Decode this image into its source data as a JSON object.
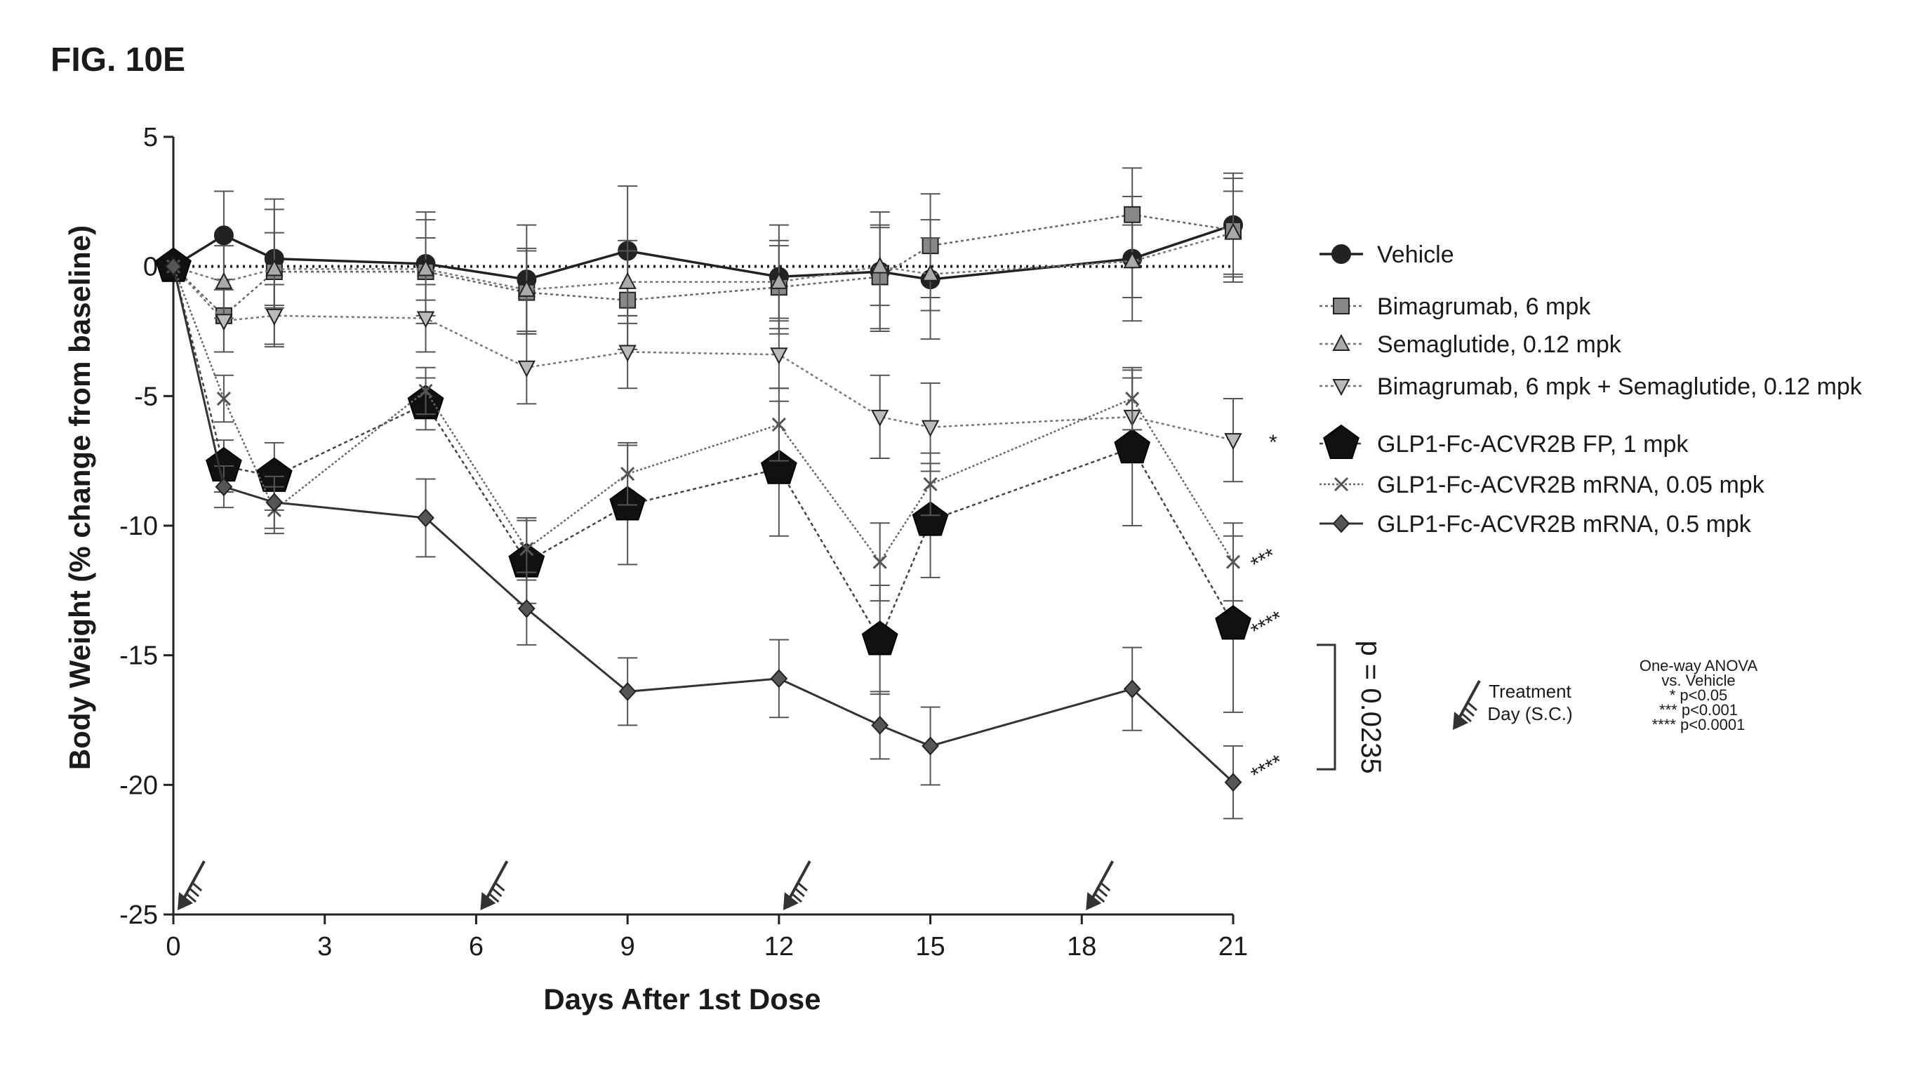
{
  "figure_label": "FIG. 10E",
  "chart_data": {
    "type": "line",
    "title": "",
    "xlabel": "Days After 1st Dose",
    "ylabel": "Body Weight (% change from baseline)",
    "xlim": [
      0,
      21
    ],
    "ylim": [
      -25,
      5
    ],
    "xticks": [
      0,
      3,
      6,
      9,
      12,
      15,
      18,
      21
    ],
    "yticks": [
      5,
      0,
      -5,
      -10,
      -15,
      -20,
      -25
    ],
    "reference_line": 0,
    "grid": false,
    "legend_position": "right",
    "series": [
      {
        "name": "Vehicle",
        "marker": "circle",
        "x": [
          0,
          1,
          2,
          5,
          7,
          9,
          12,
          14,
          15,
          19,
          21
        ],
        "y": [
          0,
          1.2,
          0.3,
          0.1,
          -0.5,
          0.6,
          -0.4,
          -0.2,
          -0.5,
          0.3,
          1.6
        ],
        "err": [
          0,
          1.7,
          1.9,
          2.0,
          2.1,
          2.5,
          2.0,
          2.3,
          2.3,
          2.4,
          2.0
        ]
      },
      {
        "name": "Bimagrumab, 6 mpk",
        "marker": "square",
        "x": [
          0,
          1,
          2,
          5,
          7,
          9,
          12,
          14,
          15,
          19,
          21
        ],
        "y": [
          0,
          -1.9,
          -0.2,
          -0.2,
          -1.0,
          -1.3,
          -0.8,
          -0.4,
          0.8,
          2.0,
          1.4
        ],
        "err": [
          0,
          1.4,
          2.8,
          2.0,
          1.6,
          1.9,
          1.8,
          2.0,
          2.0,
          1.8,
          2.0
        ]
      },
      {
        "name": "Semaglutide, 0.12 mpk",
        "marker": "triangle-up",
        "x": [
          0,
          1,
          2,
          5,
          7,
          9,
          12,
          14,
          15,
          19,
          21
        ],
        "y": [
          0,
          -0.6,
          -0.1,
          -0.1,
          -0.9,
          -0.6,
          -0.6,
          0.0,
          -0.3,
          0.2,
          1.3
        ],
        "err": [
          0,
          1.4,
          1.4,
          1.2,
          1.6,
          1.6,
          1.4,
          1.5,
          1.4,
          1.4,
          1.6
        ]
      },
      {
        "name": "Bimagrumab, 6 mpk + Semaglutide, 0.12 mpk",
        "marker": "triangle-down",
        "x": [
          0,
          1,
          2,
          5,
          7,
          9,
          12,
          14,
          15,
          19,
          21
        ],
        "y": [
          0,
          -2.1,
          -1.9,
          -2.0,
          -3.9,
          -3.3,
          -3.4,
          -5.8,
          -6.2,
          -5.8,
          -6.7
        ],
        "err": [
          0,
          1.2,
          1.2,
          1.3,
          1.4,
          1.4,
          1.3,
          1.6,
          1.7,
          1.5,
          1.6
        ]
      },
      {
        "name": "GLP1-Fc-ACVR2B FP, 1 mpk",
        "marker": "pentagon",
        "x": [
          0,
          1,
          2,
          5,
          7,
          9,
          12,
          14,
          15,
          19,
          21
        ],
        "y": [
          0,
          -7.7,
          -8.1,
          -5.3,
          -11.4,
          -9.2,
          -7.8,
          -14.4,
          -9.8,
          -7.0,
          -13.8
        ],
        "err": [
          0,
          1.0,
          1.3,
          1.0,
          1.6,
          2.3,
          2.6,
          2.1,
          2.2,
          3.0,
          3.4
        ]
      },
      {
        "name": "GLP1-Fc-ACVR2B mRNA, 0.05 mpk",
        "marker": "x",
        "x": [
          0,
          1,
          2,
          5,
          7,
          9,
          12,
          14,
          15,
          19,
          21
        ],
        "y": [
          0,
          -5.1,
          -9.4,
          -4.8,
          -10.9,
          -8.0,
          -6.1,
          -11.4,
          -8.4,
          -5.1,
          -11.4
        ],
        "err": [
          0,
          0.9,
          0.9,
          0.9,
          1.2,
          1.2,
          1.4,
          1.5,
          1.2,
          1.2,
          1.5
        ]
      },
      {
        "name": "GLP1-Fc-ACVR2B mRNA, 0.5 mpk",
        "marker": "diamond",
        "x": [
          0,
          1,
          2,
          5,
          7,
          9,
          12,
          14,
          15,
          19,
          21
        ],
        "y": [
          0,
          -8.5,
          -9.1,
          -9.7,
          -13.2,
          -16.4,
          -15.9,
          -17.7,
          -18.5,
          -16.3,
          -19.9
        ],
        "err": [
          0,
          0.8,
          1.0,
          1.5,
          1.4,
          1.3,
          1.5,
          1.3,
          1.5,
          1.6,
          1.4
        ]
      }
    ],
    "treatment_days": [
      0,
      6,
      12,
      18
    ],
    "treatment_legend": "Treatment Day (S.C.)",
    "treatment_legend_lines": [
      "Treatment",
      "Day (S.C.)"
    ],
    "significance_markers": [
      {
        "label": "*",
        "series": "Bimagrumab, 6 mpk + Semaglutide, 0.12 mpk"
      },
      {
        "label": "***",
        "series": "GLP1-Fc-ACVR2B mRNA, 0.05 mpk"
      },
      {
        "label": "****",
        "series": "GLP1-Fc-ACVR2B FP, 1 mpk"
      },
      {
        "label": "****",
        "series": "GLP1-Fc-ACVR2B mRNA, 0.5 mpk"
      }
    ],
    "bracket_annotation": "p = 0.0235",
    "stats_note": [
      "One-way ANOVA",
      "vs. Vehicle",
      "* p<0.05",
      "*** p<0.001",
      "**** p<0.0001"
    ]
  }
}
